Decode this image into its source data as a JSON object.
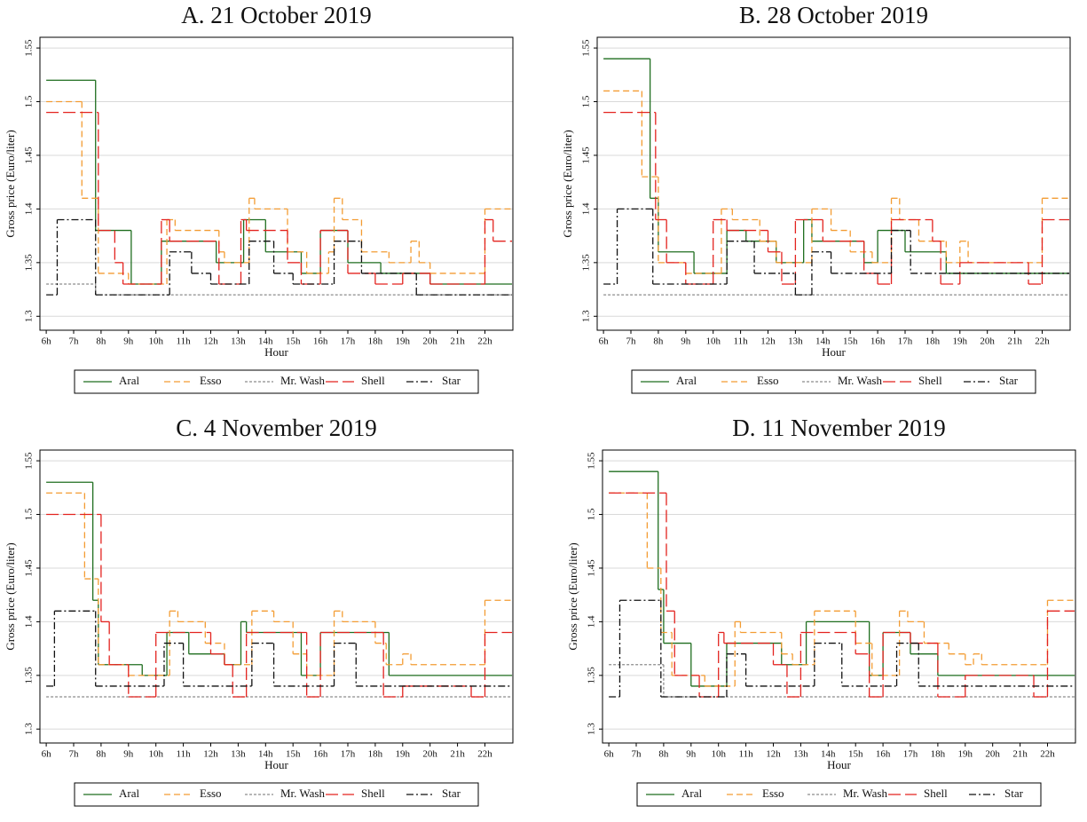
{
  "chart_data": [
    {
      "type": "line",
      "title": "A. 21 October 2019",
      "x_label": "Hour",
      "y_label": "Gross price (Euro/liter)",
      "step": true,
      "grid": true,
      "legend": "bottom",
      "xlim": [
        5.77,
        23.02
      ],
      "ylim": [
        1.287,
        1.56
      ],
      "xticks": [
        {
          "value": 6,
          "label": "6h"
        },
        {
          "value": 7,
          "label": "7h"
        },
        {
          "value": 8,
          "label": "8h"
        },
        {
          "value": 9,
          "label": "9h"
        },
        {
          "value": 10,
          "label": "10h"
        },
        {
          "value": 11,
          "label": "11h"
        },
        {
          "value": 12,
          "label": "12h"
        },
        {
          "value": 13,
          "label": "13h"
        },
        {
          "value": 14,
          "label": "14h"
        },
        {
          "value": 15,
          "label": "15h"
        },
        {
          "value": 16,
          "label": "16h"
        },
        {
          "value": 17,
          "label": "17h"
        },
        {
          "value": 18,
          "label": "18h"
        },
        {
          "value": 19,
          "label": "19h"
        },
        {
          "value": 20,
          "label": "20h"
        },
        {
          "value": 21,
          "label": "21h"
        },
        {
          "value": 22,
          "label": "22h"
        }
      ],
      "yticks": [
        1.3,
        1.35,
        1.4,
        1.45,
        1.5,
        1.55
      ],
      "series": [
        {
          "name": "Aral",
          "color": "#1f6e1f",
          "x": [
            6,
            7.8,
            9.1,
            10.2,
            12.2,
            13.2,
            14,
            15.3,
            16,
            17,
            18.2,
            20
          ],
          "values": [
            1.52,
            1.38,
            1.33,
            1.37,
            1.35,
            1.39,
            1.36,
            1.34,
            1.38,
            1.35,
            1.34,
            1.33
          ]
        },
        {
          "name": "Esso",
          "color": "#f39c33",
          "x": [
            6,
            7.3,
            7.9,
            9,
            10.4,
            10.7,
            12.3,
            12.5,
            13.4,
            13.6,
            14.8,
            15.5,
            16.3,
            16.5,
            16.8,
            17.5,
            18.5,
            19.3,
            19.6,
            20,
            22
          ],
          "values": [
            1.5,
            1.41,
            1.34,
            1.33,
            1.39,
            1.38,
            1.36,
            1.35,
            1.41,
            1.4,
            1.36,
            1.34,
            1.36,
            1.41,
            1.39,
            1.36,
            1.35,
            1.37,
            1.35,
            1.34,
            1.4
          ]
        },
        {
          "name": "Mr. Wash",
          "color": "#8c8c8c",
          "x": [
            6,
            7.8
          ],
          "values": [
            1.33,
            1.32
          ]
        },
        {
          "name": "Shell",
          "color": "#e3231f",
          "x": [
            6,
            7.9,
            8.5,
            8.8,
            10.2,
            10.5,
            12.3,
            13.1,
            13.3,
            14.8,
            15.3,
            16,
            17,
            18,
            19,
            20,
            22,
            22.3
          ],
          "values": [
            1.49,
            1.38,
            1.35,
            1.33,
            1.39,
            1.37,
            1.33,
            1.39,
            1.38,
            1.35,
            1.33,
            1.38,
            1.34,
            1.33,
            1.34,
            1.33,
            1.39,
            1.37
          ]
        },
        {
          "name": "Star",
          "color": "#111111",
          "x": [
            6,
            6.4,
            7.8,
            10.5,
            11.3,
            12,
            13.4,
            14.3,
            15,
            16.5,
            17.5,
            19.5
          ],
          "values": [
            1.32,
            1.39,
            1.32,
            1.36,
            1.34,
            1.33,
            1.37,
            1.34,
            1.33,
            1.37,
            1.34,
            1.32
          ]
        }
      ]
    },
    {
      "type": "line",
      "title": "B. 28 October 2019",
      "x_label": "Hour",
      "y_label": "Gross price (Euro/liter)",
      "step": true,
      "grid": true,
      "legend": "bottom",
      "xlim": [
        5.77,
        23.02
      ],
      "ylim": [
        1.287,
        1.56
      ],
      "xticks": [
        {
          "value": 6,
          "label": "6h"
        },
        {
          "value": 7,
          "label": "7h"
        },
        {
          "value": 8,
          "label": "8h"
        },
        {
          "value": 9,
          "label": "9h"
        },
        {
          "value": 10,
          "label": "10h"
        },
        {
          "value": 11,
          "label": "11h"
        },
        {
          "value": 12,
          "label": "12h"
        },
        {
          "value": 13,
          "label": "13h"
        },
        {
          "value": 14,
          "label": "14h"
        },
        {
          "value": 15,
          "label": "15h"
        },
        {
          "value": 16,
          "label": "16h"
        },
        {
          "value": 17,
          "label": "17h"
        },
        {
          "value": 18,
          "label": "18h"
        },
        {
          "value": 19,
          "label": "19h"
        },
        {
          "value": 20,
          "label": "20h"
        },
        {
          "value": 21,
          "label": "21h"
        },
        {
          "value": 22,
          "label": "22h"
        }
      ],
      "yticks": [
        1.3,
        1.35,
        1.4,
        1.45,
        1.5,
        1.55
      ],
      "series": [
        {
          "name": "Aral",
          "color": "#1f6e1f",
          "x": [
            6,
            7.7,
            8,
            9.3,
            10.5,
            11.2,
            12.3,
            13.3,
            13.6,
            15.5,
            16,
            17,
            18.5
          ],
          "values": [
            1.54,
            1.41,
            1.36,
            1.34,
            1.38,
            1.37,
            1.35,
            1.39,
            1.37,
            1.35,
            1.38,
            1.36,
            1.34
          ]
        },
        {
          "name": "Esso",
          "color": "#f39c33",
          "x": [
            6,
            7.4,
            8,
            9,
            10.3,
            10.7,
            11.7,
            12.3,
            13.6,
            14.3,
            15,
            15.8,
            16.5,
            16.8,
            17.5,
            18.5,
            19,
            19.3,
            22
          ],
          "values": [
            1.51,
            1.43,
            1.35,
            1.34,
            1.4,
            1.39,
            1.37,
            1.35,
            1.4,
            1.38,
            1.36,
            1.35,
            1.41,
            1.39,
            1.37,
            1.35,
            1.37,
            1.35,
            1.41
          ]
        },
        {
          "name": "Mr. Wash",
          "color": "#8c8c8c",
          "x": [
            6
          ],
          "values": [
            1.32
          ]
        },
        {
          "name": "Shell",
          "color": "#e3231f",
          "x": [
            6,
            7.9,
            8.3,
            9,
            10,
            10.5,
            12,
            12.5,
            13,
            14,
            15.5,
            16,
            16.5,
            18,
            18.3,
            19,
            21.5,
            22
          ],
          "values": [
            1.49,
            1.39,
            1.35,
            1.33,
            1.39,
            1.38,
            1.36,
            1.33,
            1.39,
            1.37,
            1.34,
            1.33,
            1.39,
            1.37,
            1.33,
            1.35,
            1.33,
            1.39
          ]
        },
        {
          "name": "Star",
          "color": "#111111",
          "x": [
            6,
            6.5,
            7.8,
            10.5,
            11.5,
            13,
            13.6,
            14.3,
            16.5,
            17.2
          ],
          "values": [
            1.33,
            1.4,
            1.33,
            1.37,
            1.34,
            1.32,
            1.36,
            1.34,
            1.38,
            1.34
          ]
        }
      ]
    },
    {
      "type": "line",
      "title": "C. 4 November 2019",
      "x_label": "Hour",
      "y_label": "Gross price (Euro/liter)",
      "step": true,
      "grid": true,
      "legend": "bottom",
      "xlim": [
        5.77,
        23.02
      ],
      "ylim": [
        1.287,
        1.56
      ],
      "xticks": [
        {
          "value": 6,
          "label": "6h"
        },
        {
          "value": 7,
          "label": "7h"
        },
        {
          "value": 8,
          "label": "8h"
        },
        {
          "value": 9,
          "label": "9h"
        },
        {
          "value": 10,
          "label": "10h"
        },
        {
          "value": 11,
          "label": "11h"
        },
        {
          "value": 12,
          "label": "12h"
        },
        {
          "value": 13,
          "label": "13h"
        },
        {
          "value": 14,
          "label": "14h"
        },
        {
          "value": 15,
          "label": "15h"
        },
        {
          "value": 16,
          "label": "16h"
        },
        {
          "value": 17,
          "label": "17h"
        },
        {
          "value": 18,
          "label": "18h"
        },
        {
          "value": 19,
          "label": "19h"
        },
        {
          "value": 20,
          "label": "20h"
        },
        {
          "value": 21,
          "label": "21h"
        },
        {
          "value": 22,
          "label": "22h"
        }
      ],
      "yticks": [
        1.3,
        1.35,
        1.4,
        1.45,
        1.5,
        1.55
      ],
      "series": [
        {
          "name": "Aral",
          "color": "#1f6e1f",
          "x": [
            6,
            7.7,
            7.9,
            9.5,
            10.4,
            11.2,
            12.5,
            13.1,
            13.3,
            15.3,
            16,
            18.5
          ],
          "values": [
            1.53,
            1.42,
            1.36,
            1.35,
            1.39,
            1.37,
            1.36,
            1.4,
            1.39,
            1.35,
            1.39,
            1.35
          ]
        },
        {
          "name": "Esso",
          "color": "#f39c33",
          "x": [
            6,
            7.4,
            7.9,
            9,
            10.5,
            10.8,
            11.8,
            12.5,
            13.5,
            14.3,
            15,
            15.5,
            16.5,
            16.8,
            18,
            18.4,
            19,
            19.3,
            22
          ],
          "values": [
            1.52,
            1.44,
            1.36,
            1.35,
            1.41,
            1.4,
            1.38,
            1.36,
            1.41,
            1.4,
            1.37,
            1.35,
            1.41,
            1.4,
            1.38,
            1.36,
            1.37,
            1.36,
            1.42
          ]
        },
        {
          "name": "Mr. Wash",
          "color": "#8c8c8c",
          "x": [
            6
          ],
          "values": [
            1.33
          ]
        },
        {
          "name": "Shell",
          "color": "#e3231f",
          "x": [
            6,
            8,
            8.3,
            9,
            10,
            12,
            12.5,
            12.8,
            13.3,
            15.5,
            16,
            18.3,
            19,
            21.5,
            22
          ],
          "values": [
            1.5,
            1.4,
            1.36,
            1.33,
            1.39,
            1.37,
            1.36,
            1.33,
            1.39,
            1.33,
            1.39,
            1.33,
            1.34,
            1.33,
            1.39
          ]
        },
        {
          "name": "Star",
          "color": "#111111",
          "x": [
            6,
            6.3,
            7.8,
            10.3,
            11,
            13.5,
            14.3,
            16.5,
            17.3
          ],
          "values": [
            1.34,
            1.41,
            1.34,
            1.38,
            1.34,
            1.38,
            1.34,
            1.38,
            1.34
          ]
        }
      ]
    },
    {
      "type": "line",
      "title": "D. 11 November 2019",
      "x_label": "Hour",
      "y_label": "Gross price (Euro/liter)",
      "step": true,
      "grid": true,
      "legend": "bottom",
      "xlim": [
        5.77,
        23.02
      ],
      "ylim": [
        1.287,
        1.56
      ],
      "xticks": [
        {
          "value": 6,
          "label": "6h"
        },
        {
          "value": 7,
          "label": "7h"
        },
        {
          "value": 8,
          "label": "8h"
        },
        {
          "value": 9,
          "label": "9h"
        },
        {
          "value": 10,
          "label": "10h"
        },
        {
          "value": 11,
          "label": "11h"
        },
        {
          "value": 12,
          "label": "12h"
        },
        {
          "value": 13,
          "label": "13h"
        },
        {
          "value": 14,
          "label": "14h"
        },
        {
          "value": 15,
          "label": "15h"
        },
        {
          "value": 16,
          "label": "16h"
        },
        {
          "value": 17,
          "label": "17h"
        },
        {
          "value": 18,
          "label": "18h"
        },
        {
          "value": 19,
          "label": "19h"
        },
        {
          "value": 20,
          "label": "20h"
        },
        {
          "value": 21,
          "label": "21h"
        },
        {
          "value": 22,
          "label": "22h"
        }
      ],
      "yticks": [
        1.3,
        1.35,
        1.4,
        1.45,
        1.5,
        1.55
      ],
      "series": [
        {
          "name": "Aral",
          "color": "#1f6e1f",
          "x": [
            6,
            7.8,
            8,
            9,
            10.3,
            12.3,
            13.2,
            15.5,
            16,
            17,
            18
          ],
          "values": [
            1.54,
            1.43,
            1.38,
            1.34,
            1.38,
            1.36,
            1.4,
            1.35,
            1.39,
            1.37,
            1.35
          ]
        },
        {
          "name": "Esso",
          "color": "#f39c33",
          "x": [
            6,
            7.4,
            7.9,
            8.3,
            9.5,
            10.6,
            10.8,
            12.3,
            12.7,
            13.5,
            15,
            15.6,
            16.6,
            16.9,
            17.5,
            18.4,
            19,
            19.3,
            19.6,
            22
          ],
          "values": [
            1.52,
            1.45,
            1.39,
            1.35,
            1.34,
            1.4,
            1.39,
            1.37,
            1.36,
            1.41,
            1.38,
            1.35,
            1.41,
            1.4,
            1.38,
            1.37,
            1.36,
            1.37,
            1.36,
            1.42
          ]
        },
        {
          "name": "Mr. Wash",
          "color": "#8c8c8c",
          "x": [
            6,
            8
          ],
          "values": [
            1.36,
            1.33
          ]
        },
        {
          "name": "Shell",
          "color": "#e3231f",
          "x": [
            6,
            8.1,
            8.4,
            9.3,
            10,
            10.2,
            12,
            12.5,
            13,
            15,
            15.5,
            16,
            17,
            18,
            19,
            21.5,
            22
          ],
          "values": [
            1.52,
            1.41,
            1.35,
            1.33,
            1.39,
            1.38,
            1.36,
            1.33,
            1.39,
            1.37,
            1.33,
            1.39,
            1.38,
            1.33,
            1.35,
            1.33,
            1.41
          ]
        },
        {
          "name": "Star",
          "color": "#111111",
          "x": [
            6,
            6.4,
            7.9,
            10.3,
            11,
            13.5,
            14.5,
            16.5,
            17.3
          ],
          "values": [
            1.33,
            1.42,
            1.33,
            1.37,
            1.34,
            1.38,
            1.34,
            1.38,
            1.34
          ]
        }
      ]
    }
  ]
}
